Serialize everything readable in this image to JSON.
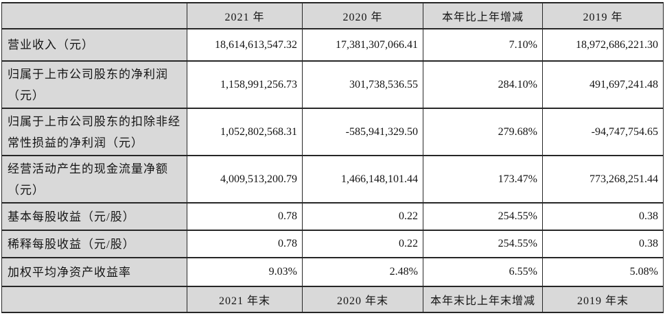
{
  "table": {
    "header": {
      "corner": "",
      "col_2021": "2021 年",
      "col_2020": "2020 年",
      "col_change": "本年比上年增减",
      "col_2019": "2019 年"
    },
    "rows": [
      {
        "label": "营业收入（元）",
        "v2021": "18,614,613,547.32",
        "v2020": "17,381,307,066.41",
        "change": "7.10%",
        "v2019": "18,972,686,221.30"
      },
      {
        "label": "归属于上市公司股东的净利润（元）",
        "v2021": "1,158,991,256.73",
        "v2020": "301,738,536.55",
        "change": "284.10%",
        "v2019": "491,697,241.48"
      },
      {
        "label": "归属于上市公司股东的扣除非经常性损益的净利润（元）",
        "v2021": "1,052,802,568.31",
        "v2020": "-585,941,329.50",
        "change": "279.68%",
        "v2019": "-94,747,754.65"
      },
      {
        "label": "经营活动产生的现金流量净额（元）",
        "v2021": "4,009,513,200.79",
        "v2020": "1,466,148,101.44",
        "change": "173.47%",
        "v2019": "773,268,251.44"
      },
      {
        "label": "基本每股收益（元/股）",
        "v2021": "0.78",
        "v2020": "0.22",
        "change": "254.55%",
        "v2019": "0.38"
      },
      {
        "label": "稀释每股收益（元/股）",
        "v2021": "0.78",
        "v2020": "0.22",
        "change": "254.55%",
        "v2019": "0.38"
      },
      {
        "label": "加权平均净资产收益率",
        "v2021": "9.03%",
        "v2020": "2.48%",
        "change": "6.55%",
        "v2019": "5.08%"
      }
    ],
    "footer": {
      "corner": "",
      "col_2021": "2021 年末",
      "col_2020": "2020 年末",
      "col_change": "本年末比上年末增减",
      "col_2019": "2019 年末"
    }
  },
  "colors": {
    "shade_bg": "#d9d9d9",
    "border": "#262626",
    "text": "#141414"
  }
}
